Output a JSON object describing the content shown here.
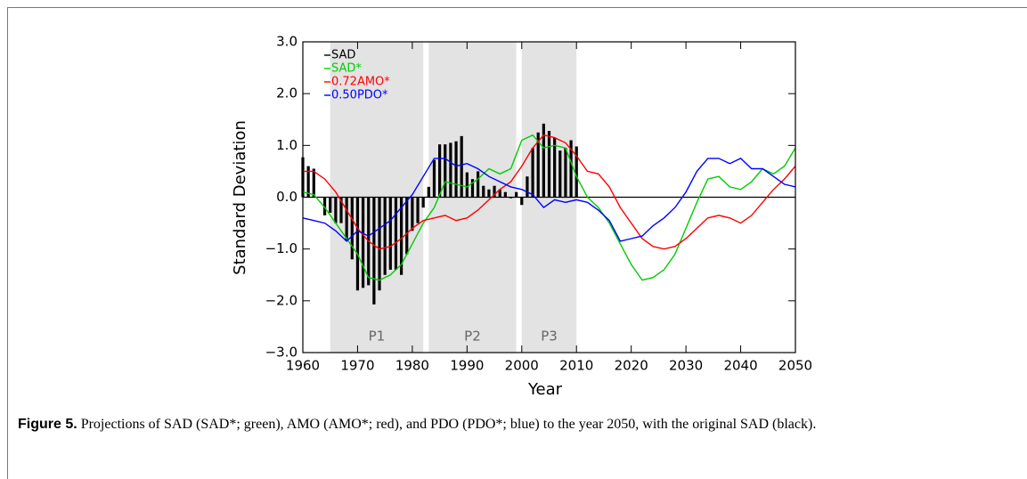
{
  "chart_data": {
    "type": "bar-line",
    "ylabel": "Standard Deviation",
    "xlabel": "Year",
    "xlim": [
      1960,
      2050
    ],
    "ylim": [
      -3,
      3
    ],
    "xticks": [
      1960,
      1970,
      1980,
      1990,
      2000,
      2010,
      2020,
      2030,
      2040,
      2050
    ],
    "yticks": [
      {
        "value": -3,
        "label": "−3.0"
      },
      {
        "value": -2,
        "label": "−2.0"
      },
      {
        "value": -1,
        "label": "−1.0"
      },
      {
        "value": 0,
        "label": "0.0"
      },
      {
        "value": 1,
        "label": "1.0"
      },
      {
        "value": 2,
        "label": "2.0"
      },
      {
        "value": 3,
        "label": "3.0"
      }
    ],
    "legend": "upper left",
    "periods": [
      {
        "label": "P1",
        "range": [
          1965,
          1982
        ]
      },
      {
        "label": "P2",
        "range": [
          1983,
          1999
        ]
      },
      {
        "label": "P3",
        "range": [
          2000,
          2010
        ]
      }
    ],
    "series": [
      {
        "name": "SAD",
        "type": "bar",
        "color": "#000000",
        "x": [
          1960,
          1961,
          1962,
          1963,
          1964,
          1965,
          1966,
          1967,
          1968,
          1969,
          1970,
          1971,
          1972,
          1973,
          1974,
          1975,
          1976,
          1977,
          1978,
          1979,
          1980,
          1981,
          1982,
          1983,
          1984,
          1985,
          1986,
          1987,
          1988,
          1989,
          1990,
          1991,
          1992,
          1993,
          1994,
          1995,
          1996,
          1997,
          1998,
          1999,
          2000,
          2001,
          2002,
          2003,
          2004,
          2005,
          2006,
          2007,
          2008,
          2009,
          2010
        ],
        "values": [
          0.77,
          0.6,
          0.55,
          0.0,
          -0.35,
          -0.3,
          -0.5,
          -0.5,
          -0.85,
          -1.2,
          -1.8,
          -1.75,
          -1.7,
          -2.07,
          -1.8,
          -1.5,
          -1.4,
          -1.4,
          -1.5,
          -1.1,
          -0.65,
          -0.5,
          -0.2,
          0.2,
          0.72,
          1.02,
          1.02,
          1.05,
          1.08,
          1.18,
          0.48,
          0.35,
          0.5,
          0.22,
          0.15,
          0.22,
          0.15,
          0.1,
          -0.02,
          0.1,
          -0.15,
          0.4,
          0.95,
          1.25,
          1.42,
          1.28,
          1.15,
          0.9,
          0.95,
          1.1,
          0.98
        ]
      },
      {
        "name": "SAD*",
        "type": "line",
        "color": "#00cc00",
        "x": [
          1960,
          1962,
          1964,
          1966,
          1968,
          1970,
          1972,
          1974,
          1976,
          1978,
          1980,
          1982,
          1984,
          1986,
          1988,
          1990,
          1992,
          1994,
          1996,
          1998,
          2000,
          2002,
          2004,
          2006,
          2008,
          2010,
          2012,
          2014,
          2016,
          2018,
          2020,
          2022,
          2024,
          2026,
          2028,
          2030,
          2032,
          2034,
          2036,
          2038,
          2040,
          2042,
          2044,
          2046,
          2048,
          2050
        ],
        "values": [
          0.1,
          0.05,
          -0.2,
          -0.5,
          -0.8,
          -1.1,
          -1.55,
          -1.6,
          -1.5,
          -1.3,
          -0.9,
          -0.5,
          -0.2,
          0.3,
          0.25,
          0.2,
          0.35,
          0.55,
          0.45,
          0.55,
          1.1,
          1.2,
          0.95,
          1.0,
          0.95,
          0.4,
          0.0,
          -0.2,
          -0.5,
          -0.9,
          -1.3,
          -1.6,
          -1.55,
          -1.4,
          -1.1,
          -0.6,
          -0.1,
          0.35,
          0.4,
          0.2,
          0.15,
          0.3,
          0.55,
          0.45,
          0.6,
          0.95
        ]
      },
      {
        "name": "0.72AMO*",
        "type": "line",
        "color": "#ff0000",
        "x": [
          1960,
          1962,
          1964,
          1966,
          1968,
          1970,
          1972,
          1974,
          1976,
          1978,
          1980,
          1982,
          1984,
          1986,
          1988,
          1990,
          1992,
          1994,
          1996,
          1998,
          2000,
          2002,
          2004,
          2006,
          2008,
          2010,
          2012,
          2014,
          2016,
          2018,
          2020,
          2022,
          2024,
          2026,
          2028,
          2030,
          2032,
          2034,
          2036,
          2038,
          2040,
          2042,
          2044,
          2046,
          2048,
          2050
        ],
        "values": [
          0.5,
          0.5,
          0.35,
          0.1,
          -0.25,
          -0.6,
          -0.85,
          -1.0,
          -0.95,
          -0.8,
          -0.6,
          -0.45,
          -0.4,
          -0.35,
          -0.45,
          -0.4,
          -0.25,
          -0.05,
          0.15,
          0.3,
          0.6,
          0.95,
          1.2,
          1.15,
          1.05,
          0.8,
          0.5,
          0.45,
          0.2,
          -0.2,
          -0.5,
          -0.8,
          -0.95,
          -1.0,
          -0.95,
          -0.8,
          -0.6,
          -0.4,
          -0.35,
          -0.4,
          -0.5,
          -0.35,
          -0.1,
          0.15,
          0.35,
          0.6
        ]
      },
      {
        "name": "0.50PDO*",
        "type": "line",
        "color": "#0000ff",
        "x": [
          1960,
          1962,
          1964,
          1966,
          1968,
          1970,
          1972,
          1974,
          1976,
          1978,
          1980,
          1982,
          1984,
          1986,
          1988,
          1990,
          1992,
          1994,
          1996,
          1998,
          2000,
          2002,
          2004,
          2006,
          2008,
          2010,
          2012,
          2014,
          2016,
          2018,
          2020,
          2022,
          2024,
          2026,
          2028,
          2030,
          2032,
          2034,
          2036,
          2038,
          2040,
          2042,
          2044,
          2046,
          2048,
          2050
        ],
        "values": [
          -0.4,
          -0.45,
          -0.5,
          -0.65,
          -0.85,
          -0.65,
          -0.75,
          -0.6,
          -0.45,
          -0.2,
          0.05,
          0.4,
          0.75,
          0.75,
          0.6,
          0.65,
          0.55,
          0.4,
          0.3,
          0.2,
          0.15,
          0.05,
          -0.2,
          -0.05,
          -0.1,
          -0.05,
          -0.1,
          -0.25,
          -0.45,
          -0.85,
          -0.8,
          -0.75,
          -0.55,
          -0.4,
          -0.2,
          0.1,
          0.5,
          0.75,
          0.75,
          0.65,
          0.75,
          0.55,
          0.55,
          0.4,
          0.25,
          0.2
        ]
      }
    ]
  },
  "caption": {
    "label": "Figure 5.",
    "text": "Projections of SAD (SAD*; green), AMO (AMO*; red), and PDO (PDO*; blue) to the year 2050, with the original SAD (black)."
  }
}
